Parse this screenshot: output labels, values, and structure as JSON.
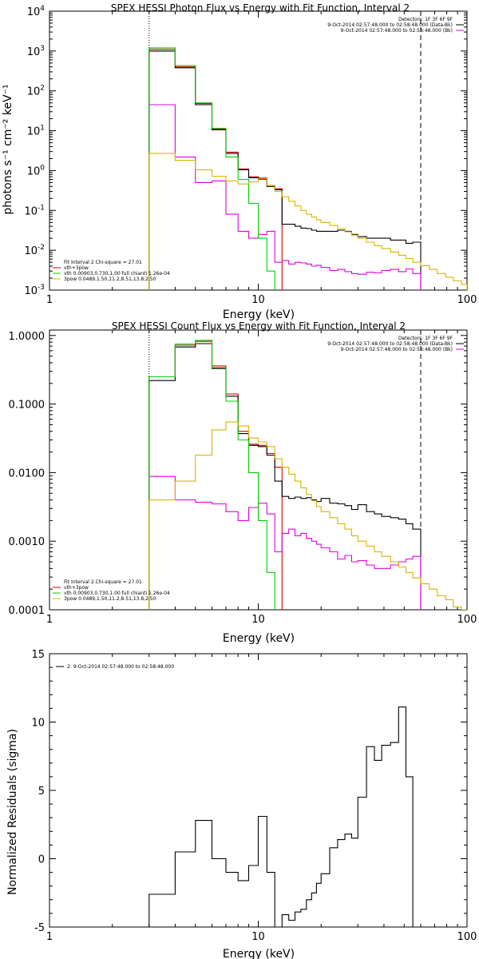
{
  "chart_data": [
    {
      "type": "line",
      "title": "SPEX HESSI Photon Flux vs Energy with Fit Function, Interval 2",
      "xlabel": "Energy (keV)",
      "ylabel": "photons s⁻¹ cm⁻² keV⁻¹",
      "xscale": "log",
      "yscale": "log",
      "xlim": [
        1,
        100
      ],
      "ylim": [
        0.001,
        10000
      ],
      "xticks": [
        {
          "v": 1,
          "label": "1"
        },
        {
          "v": 10,
          "label": "10"
        },
        {
          "v": 100,
          "label": "100"
        }
      ],
      "yticks": [
        {
          "v": 0.001,
          "base": "10",
          "exp": "-3"
        },
        {
          "v": 0.01,
          "base": "10",
          "exp": "-2"
        },
        {
          "v": 0.1,
          "base": "10",
          "exp": "-1"
        },
        {
          "v": 1,
          "base": "10",
          "exp": "0"
        },
        {
          "v": 10,
          "base": "10",
          "exp": "1"
        },
        {
          "v": 100,
          "base": "10",
          "exp": "2"
        },
        {
          "v": 1000,
          "base": "10",
          "exp": "3"
        },
        {
          "v": 10000,
          "base": "10",
          "exp": "4"
        }
      ],
      "legend_top_right": [
        {
          "text": "Detectors: 1F 3F 6F 9F",
          "color": ""
        },
        {
          "text": "9-Oct-2014 02:57:48.000 to 02:58:48.000 (Data-Bk)",
          "color": "#000000"
        },
        {
          "text": "9-Oct-2014 02:57:48.000 to 02:58:48.000 (Bk)",
          "color": "#e000e0"
        }
      ],
      "legend_bottom_left": [
        {
          "text": "Fit Interval 2   Chi-square = 27.01",
          "color": ""
        },
        {
          "text": "vth+3pow",
          "color": "#e00000"
        },
        {
          "text": "vth 0.00903,0.730,1.00  full chianti 1.26e-04",
          "color": "#00d000"
        },
        {
          "text": "3pow 0.0489,1.50,11.2,8.51,13.8,2.50",
          "color": "#d8b400"
        }
      ],
      "vlines": [
        {
          "x": 3,
          "style": "dotted"
        },
        {
          "x": 60,
          "style": "dashed"
        }
      ],
      "edges": [
        3,
        4,
        5,
        6,
        7,
        8,
        9,
        10,
        11,
        12,
        13,
        14,
        15,
        16,
        17,
        18,
        19,
        20,
        22,
        24,
        26,
        28,
        30,
        33,
        36,
        39,
        43,
        47,
        51,
        55,
        60,
        66,
        72,
        79,
        86,
        94,
        100
      ],
      "series": [
        {
          "name": "vth+3pow",
          "color": "#e00000",
          "values": [
            1100,
            400,
            48,
            11,
            2.9,
            1.1,
            0.7,
            0.65,
            0.42,
            0.35
          ]
        },
        {
          "name": "Data-Bk",
          "color": "#000000",
          "values": [
            1000,
            380,
            45,
            10.5,
            2.7,
            1.05,
            0.66,
            0.6,
            0.4,
            0.33,
            0.045,
            0.045,
            0.04,
            0.036,
            0.035,
            0.032,
            0.03,
            0.03,
            0.03,
            0.032,
            0.03,
            0.025,
            0.022,
            0.02,
            0.02,
            0.02,
            0.018,
            0.018,
            0.015,
            0.016
          ]
        },
        {
          "name": "Bk",
          "color": "#e000e0",
          "values": [
            45,
            2.2,
            0.5,
            0.55,
            0.08,
            0.03,
            0.02,
            0.025,
            0.03,
            0.005,
            0.0055,
            0.0045,
            0.005,
            0.0048,
            0.0045,
            0.004,
            0.0042,
            0.0037,
            0.0031,
            0.0033,
            0.0029,
            0.0026,
            0.0025,
            0.0028,
            0.0027,
            0.0031,
            0.0033,
            0.0029,
            0.0034,
            0.0026
          ]
        },
        {
          "name": "vth",
          "color": "#00d000",
          "values": [
            1200,
            430,
            50,
            11.5,
            2.2,
            0.6,
            0.15,
            0.02,
            0.003,
            0.0005
          ]
        },
        {
          "name": "3pow",
          "color": "#d8b400",
          "values": [
            2.7,
            1.8,
            1.05,
            0.72,
            0.55,
            0.46,
            0.52,
            0.62,
            0.42,
            0.3,
            0.22,
            0.17,
            0.13,
            0.1,
            0.08,
            0.068,
            0.058,
            0.05,
            0.042,
            0.035,
            0.029,
            0.024,
            0.02,
            0.016,
            0.013,
            0.011,
            0.009,
            0.0075,
            0.0062,
            0.005,
            0.0041,
            0.0033,
            0.0026,
            0.0021,
            0.0017,
            0.0014
          ]
        }
      ]
    },
    {
      "type": "line",
      "title": "SPEX HESSI Count Flux vs Energy with Fit Function, Interval 2",
      "xlabel": "Energy (keV)",
      "ylabel": "",
      "xscale": "log",
      "yscale": "log",
      "xlim": [
        1,
        100
      ],
      "ylim": [
        0.0001,
        1.2
      ],
      "xticks": [
        {
          "v": 1,
          "label": "1"
        },
        {
          "v": 10,
          "label": "10"
        },
        {
          "v": 100,
          "label": "100"
        }
      ],
      "yticks": [
        {
          "v": 0.0001,
          "label": "0.0001"
        },
        {
          "v": 0.001,
          "label": "0.0010"
        },
        {
          "v": 0.01,
          "label": "0.0100"
        },
        {
          "v": 0.1,
          "label": "0.1000"
        },
        {
          "v": 1,
          "label": "1.0000"
        }
      ],
      "legend_top_right": [
        {
          "text": "Detectors: 1F 3F 6F 9F",
          "color": ""
        },
        {
          "text": "9-Oct-2014 02:57:48.000 to 02:58:48.000 (Data-Bk)",
          "color": "#000000"
        },
        {
          "text": "9-Oct-2014 02:57:48.000 to 02:58:48.000 (Bk)",
          "color": "#e000e0"
        }
      ],
      "legend_bottom_left": [
        {
          "text": "Fit Interval 2   Chi-square = 27.01",
          "color": ""
        },
        {
          "text": "vth+3pow",
          "color": "#e00000"
        },
        {
          "text": "vth 0.00903,0.730,1.00  full chianti 1.26e-04",
          "color": "#00d000"
        },
        {
          "text": "3pow 0.0489,1.50,11.2,8.51,13.8,2.50",
          "color": "#d8b400"
        }
      ],
      "vlines": [
        {
          "x": 3,
          "style": "dotted"
        },
        {
          "x": 60,
          "style": "dashed"
        }
      ],
      "edges": [
        3,
        4,
        5,
        6,
        7,
        8,
        9,
        10,
        11,
        12,
        13,
        14,
        15,
        16,
        17,
        18,
        19,
        20,
        22,
        24,
        26,
        28,
        30,
        33,
        36,
        39,
        43,
        47,
        51,
        55,
        60,
        66,
        72,
        79,
        86,
        94,
        100
      ],
      "series": [
        {
          "name": "vth+3pow",
          "color": "#e00000",
          "values": [
            0.25,
            0.72,
            0.82,
            0.36,
            0.14,
            0.04,
            0.026,
            0.025,
            0.019,
            0.012
          ]
        },
        {
          "name": "Data-Bk",
          "color": "#000000",
          "values": [
            0.22,
            0.68,
            0.76,
            0.33,
            0.13,
            0.037,
            0.025,
            0.024,
            0.018,
            0.0075,
            0.0045,
            0.0042,
            0.0044,
            0.0042,
            0.0043,
            0.004,
            0.0038,
            0.0042,
            0.0036,
            0.0035,
            0.0033,
            0.0029,
            0.0034,
            0.0027,
            0.0025,
            0.0023,
            0.0022,
            0.0021,
            0.0018,
            0.0015
          ]
        },
        {
          "name": "Bk",
          "color": "#e000e0",
          "values": [
            0.0088,
            0.004,
            0.0037,
            0.0035,
            0.0027,
            0.002,
            0.0031,
            0.0036,
            0.0025,
            0.0007,
            0.0013,
            0.0015,
            0.0012,
            0.0013,
            0.0011,
            0.001,
            0.0009,
            0.0008,
            0.0007,
            0.00055,
            0.00062,
            0.0005,
            0.00052,
            0.00045,
            0.0004,
            0.0004,
            0.00045,
            0.0005,
            0.00055,
            0.0006
          ]
        },
        {
          "name": "vth",
          "color": "#00d000",
          "values": [
            0.25,
            0.75,
            0.85,
            0.34,
            0.11,
            0.03,
            0.01,
            0.002,
            0.00035,
            5e-05
          ]
        },
        {
          "name": "3pow",
          "color": "#d8b400",
          "values": [
            0.004,
            0.0075,
            0.018,
            0.042,
            0.055,
            0.048,
            0.032,
            0.028,
            0.024,
            0.016,
            0.012,
            0.0095,
            0.0075,
            0.006,
            0.0048,
            0.0039,
            0.0032,
            0.0027,
            0.0022,
            0.0018,
            0.0015,
            0.0012,
            0.001,
            0.00085,
            0.0007,
            0.0006,
            0.0005,
            0.00042,
            0.00035,
            0.00029,
            0.00024,
            0.0002,
            0.00016,
            0.00014,
            0.00011,
            0.0001
          ]
        }
      ]
    },
    {
      "type": "line",
      "title": "",
      "xlabel": "Energy (keV)",
      "ylabel": "Normalized Residuals (sigma)",
      "xscale": "log",
      "yscale": "linear",
      "xlim": [
        1,
        100
      ],
      "ylim": [
        -5,
        15
      ],
      "xticks": [
        {
          "v": 1,
          "label": "1"
        },
        {
          "v": 10,
          "label": "10"
        },
        {
          "v": 100,
          "label": "100"
        }
      ],
      "yticks": [
        {
          "v": -5,
          "label": "-5"
        },
        {
          "v": 0,
          "label": "0"
        },
        {
          "v": 5,
          "label": "5"
        },
        {
          "v": 10,
          "label": "10"
        },
        {
          "v": 15,
          "label": "15"
        }
      ],
      "legend_top_left": [
        {
          "text": "2: 9-Oct-2014 02:57:48.000 to 02:58:48.000",
          "color": "#000000"
        }
      ],
      "edges": [
        3,
        4,
        5,
        6,
        7,
        8,
        9,
        10,
        11,
        12,
        13,
        14,
        15,
        16,
        17,
        18,
        19,
        20,
        22,
        24,
        26,
        28,
        30,
        33,
        36,
        39,
        43,
        47,
        51,
        55,
        60
      ],
      "series": [
        {
          "name": "",
          "color": "#000000",
          "values": [
            -2.6,
            0.5,
            2.8,
            0,
            -1,
            -1.6,
            -0.5,
            3.1,
            -1,
            -5.6,
            -4.1,
            -4.5,
            -3.9,
            -3.7,
            -3.0,
            -2.5,
            -1.8,
            -1.1,
            0.8,
            1.4,
            1.8,
            1.5,
            4.5,
            8.2,
            7.2,
            8.3,
            8.5,
            11.1,
            6.0
          ]
        }
      ]
    }
  ]
}
